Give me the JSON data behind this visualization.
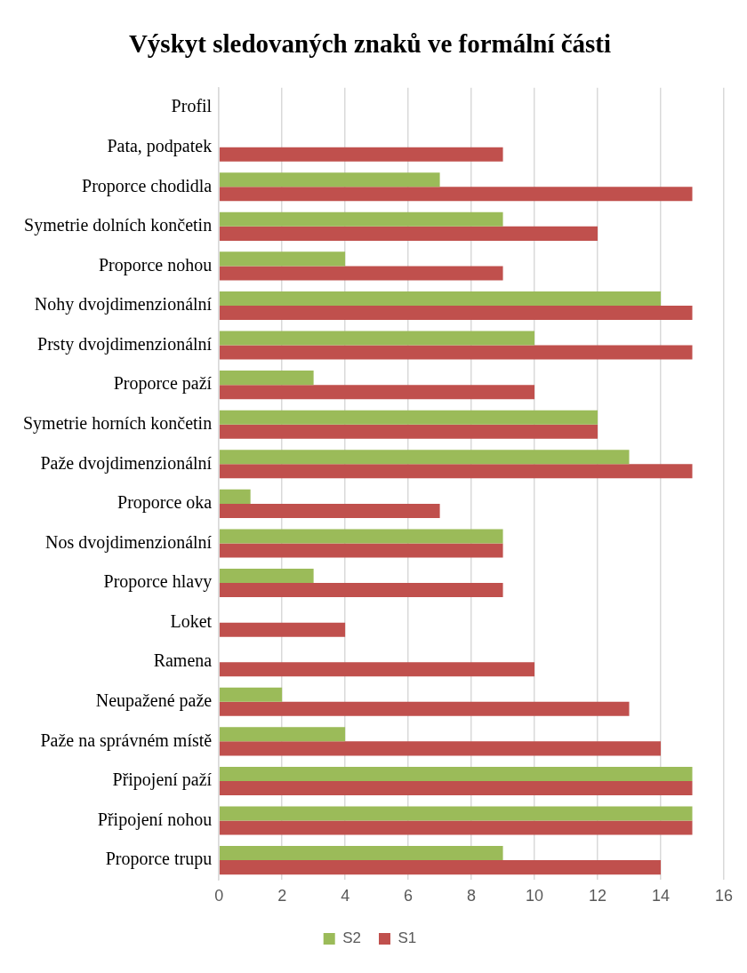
{
  "chart_data": {
    "type": "bar",
    "orientation": "horizontal",
    "title": "Výskyt sledovaných znaků ve formální části",
    "categories": [
      "Profil",
      "Pata, podpatek",
      "Proporce chodidla",
      "Symetrie dolních končetin",
      "Proporce nohou",
      "Nohy dvojdimenzionální",
      "Prsty dvojdimenzionální",
      "Proporce paží",
      "Symetrie horních končetin",
      "Paže dvojdimenzionální",
      "Proporce oka",
      "Nos dvojdimenzionální",
      "Proporce hlavy",
      "Loket",
      "Ramena",
      "Neupažené paže",
      "Paže na správném místě",
      "Připojení paží",
      "Připojení nohou",
      "Proporce trupu"
    ],
    "series": [
      {
        "name": "S2",
        "color": "#9bbb59",
        "values": [
          0,
          0,
          7,
          9,
          4,
          14,
          10,
          3,
          12,
          13,
          1,
          9,
          3,
          0,
          0,
          2,
          4,
          15,
          15,
          9
        ]
      },
      {
        "name": "S1",
        "color": "#c0504d",
        "values": [
          0,
          9,
          15,
          12,
          9,
          15,
          15,
          10,
          12,
          15,
          7,
          9,
          9,
          4,
          10,
          13,
          14,
          15,
          15,
          14
        ]
      }
    ],
    "xlim": [
      0,
      16
    ],
    "xticks": [
      0,
      2,
      4,
      6,
      8,
      10,
      12,
      14,
      16
    ],
    "grid": "x",
    "legend": "bottom"
  }
}
